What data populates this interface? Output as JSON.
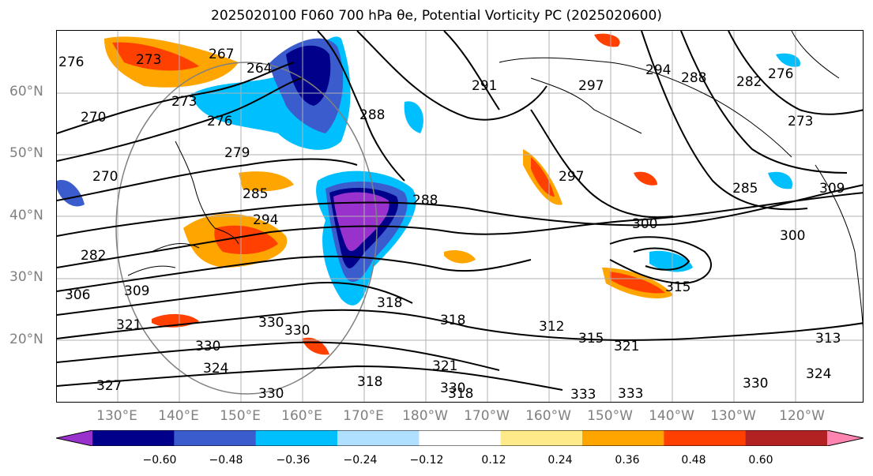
{
  "title": "2025020100 F060 700 hPa θe, Potential Vorticity PC (2025020600)",
  "lat_labels": [
    "60°N",
    "50°N",
    "40°N",
    "30°N",
    "20°N"
  ],
  "lon_labels": [
    "130°E",
    "140°E",
    "150°E",
    "160°E",
    "170°E",
    "180°W",
    "170°W",
    "160°W",
    "150°W",
    "140°W",
    "130°W",
    "120°W"
  ],
  "colorbar": {
    "colors": [
      "#9932cc",
      "#00008b",
      "#3a5ccc",
      "#00bfff",
      "#b0e0ff",
      "#ffffff",
      "#ffea8a",
      "#ffa500",
      "#ff4000",
      "#b22222",
      "#ff85b0"
    ],
    "ticks": [
      "−0.60",
      "−0.48",
      "−0.36",
      "−0.24",
      "−0.12",
      "0.12",
      "0.24",
      "0.36",
      "0.48",
      "0.60"
    ]
  },
  "contour_labels": [
    "276",
    "273",
    "267",
    "264",
    "270",
    "273",
    "276",
    "279",
    "270",
    "285",
    "294",
    "288",
    "291",
    "297",
    "294",
    "288",
    "282",
    "276",
    "273",
    "285",
    "297",
    "300",
    "309",
    "288",
    "282",
    "306",
    "309",
    "300",
    "315",
    "318",
    "312",
    "318",
    "315",
    "321",
    "321",
    "330",
    "330",
    "330",
    "324",
    "324",
    "327",
    "321",
    "318",
    "330",
    "330",
    "333",
    "330",
    "333",
    "318",
    "313"
  ]
}
